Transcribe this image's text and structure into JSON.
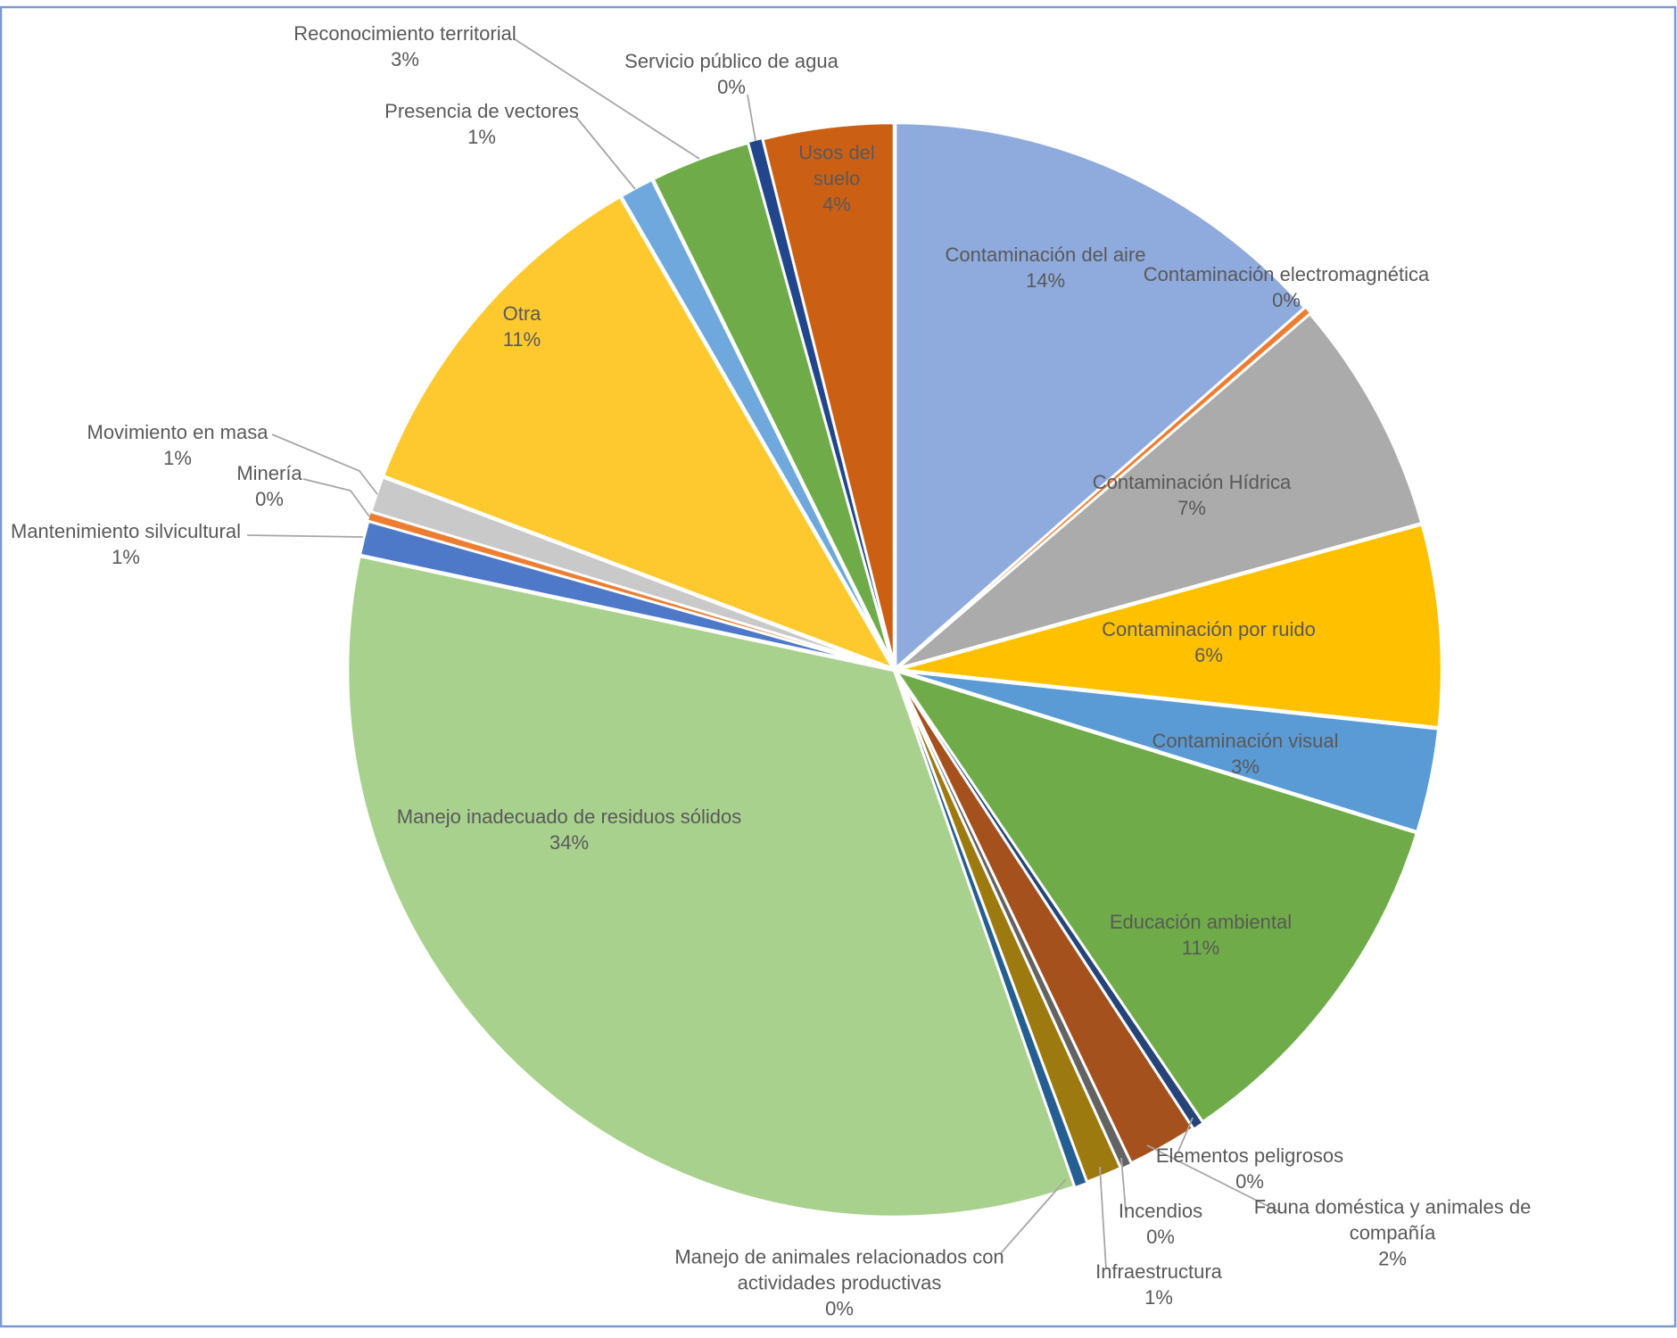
{
  "chart_data": {
    "type": "pie",
    "title": "",
    "legend_position": "none",
    "value_format": "percent",
    "direction": "clockwise",
    "start_angle_deg": 0,
    "label_color": "#595959",
    "leader_line_color": "#A6A6A6",
    "slice_border_color": "#FFFFFF",
    "frame_border_color": "#7A99D1",
    "background": "#FFFFFF",
    "slices": [
      {
        "label": "Contaminación del aire",
        "value": 13.5,
        "pct_label": "14%",
        "color": "#8FAADC",
        "label_placement": "inside"
      },
      {
        "label": "Contaminación electromagnética",
        "value": 0.2,
        "pct_label": "0%",
        "color": "#ED7D31",
        "label_placement": "outside"
      },
      {
        "label": "Contaminación Hídrica",
        "value": 7.0,
        "pct_label": "7%",
        "color": "#ABABAB",
        "label_placement": "inside"
      },
      {
        "label": "Contaminación por ruido",
        "value": 6.0,
        "pct_label": "6%",
        "color": "#FFC000",
        "label_placement": "inside"
      },
      {
        "label": "Contaminación visual",
        "value": 3.1,
        "pct_label": "3%",
        "color": "#5B9BD5",
        "label_placement": "inside"
      },
      {
        "label": "Educación ambiental",
        "value": 10.7,
        "pct_label": "11%",
        "color": "#6FAC49",
        "label_placement": "inside"
      },
      {
        "label": "Elementos peligrosos",
        "value": 0.3,
        "pct_label": "0%",
        "color": "#264478",
        "label_placement": "outside"
      },
      {
        "label": "Fauna doméstica y animales de compañía",
        "value": 2.1,
        "pct_label": "2%",
        "color": "#A4511E",
        "label_placement": "outside"
      },
      {
        "label": "Incendios",
        "value": 0.3,
        "pct_label": "0%",
        "color": "#636363",
        "label_placement": "outside"
      },
      {
        "label": "Infraestructura",
        "value": 1.1,
        "pct_label": "1%",
        "color": "#9C7A10",
        "label_placement": "outside"
      },
      {
        "label": "Manejo de animales relacionados con actividades productivas",
        "value": 0.35,
        "pct_label": "0%",
        "color": "#255E91",
        "label_placement": "outside"
      },
      {
        "label": "Manejo inadecuado de residuos sólidos",
        "value": 33.7,
        "pct_label": "34%",
        "color": "#A9D18E",
        "label_placement": "inside"
      },
      {
        "label": "Mantenimiento silvicultural",
        "value": 1.05,
        "pct_label": "1%",
        "color": "#4E78C8",
        "label_placement": "outside"
      },
      {
        "label": "Minería",
        "value": 0.25,
        "pct_label": "0%",
        "color": "#ED7D31",
        "label_placement": "outside"
      },
      {
        "label": "Movimiento en masa",
        "value": 1.1,
        "pct_label": "1%",
        "color": "#C9C9C9",
        "label_placement": "outside"
      },
      {
        "label": "Otra",
        "value": 10.9,
        "pct_label": "11%",
        "color": "#FEC92F",
        "label_placement": "inside"
      },
      {
        "label": "Presencia de vectores",
        "value": 1.05,
        "pct_label": "1%",
        "color": "#6FA8DC",
        "label_placement": "outside"
      },
      {
        "label": "Reconocimiento territorial",
        "value": 3.0,
        "pct_label": "3%",
        "color": "#6FAC49",
        "label_placement": "outside"
      },
      {
        "label": "Servicio público de agua",
        "value": 0.4,
        "pct_label": "0%",
        "color": "#21468B",
        "label_placement": "outside"
      },
      {
        "label": "Usos del suelo",
        "value": 3.9,
        "pct_label": "4%",
        "color": "#CB6015",
        "label_placement": "inside"
      }
    ]
  }
}
